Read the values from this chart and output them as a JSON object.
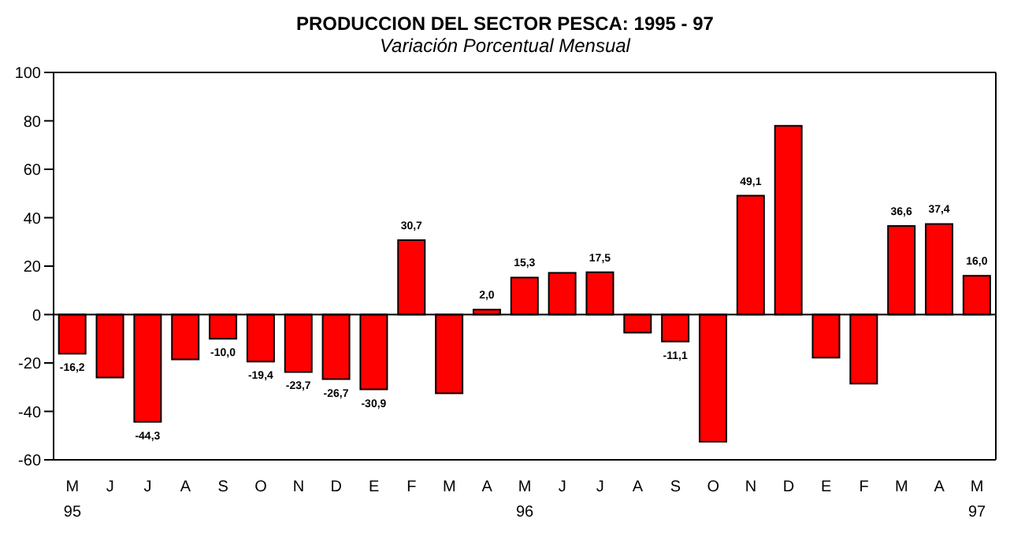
{
  "chart_data": {
    "type": "bar",
    "title": "PRODUCCION DEL SECTOR PESCA: 1995 - 97",
    "subtitle": "Variación Porcentual Mensual",
    "categories": [
      "M\n95",
      "J",
      "J",
      "A",
      "S",
      "O",
      "N",
      "D",
      "E",
      "F",
      "M",
      "A",
      "M\n96",
      "J",
      "J",
      "A",
      "S",
      "O",
      "N",
      "D",
      "E",
      "F",
      "M",
      "A",
      "M\n97"
    ],
    "values": [
      -16.2,
      -26,
      -44.3,
      -18.5,
      -10.0,
      -19.4,
      -23.7,
      -26.7,
      -30.9,
      30.7,
      -32.5,
      2.0,
      15.3,
      17.2,
      17.5,
      -7.5,
      -11.1,
      -52.5,
      49.1,
      78,
      -17.8,
      -28.5,
      36.6,
      37.4,
      16.0
    ],
    "value_labels": [
      "-16,2",
      null,
      "-44,3",
      null,
      "-10,0",
      "-19,4",
      "-23,7",
      "-26,7",
      "-30,9",
      "30,7",
      null,
      "2,0",
      "15,3",
      null,
      "17,5",
      null,
      "-11,1",
      null,
      "49,1",
      null,
      null,
      null,
      "36,6",
      "37,4",
      "16,0"
    ],
    "color": "#ff0000",
    "ylim": [
      -60,
      100
    ],
    "yticks": [
      -60,
      -40,
      -20,
      0,
      20,
      40,
      60,
      80,
      100
    ]
  }
}
